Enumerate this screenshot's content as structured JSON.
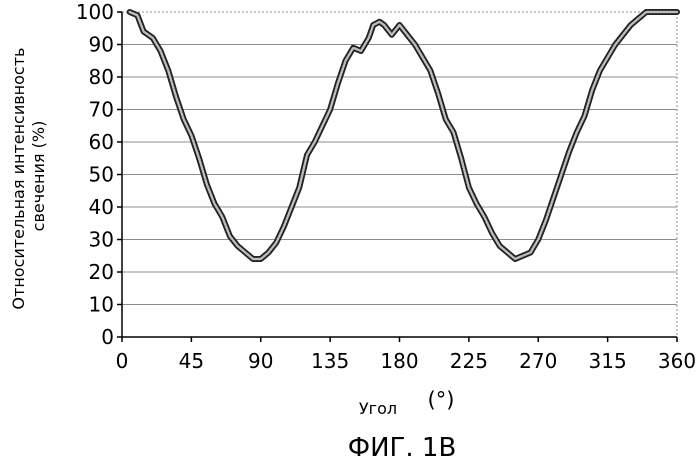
{
  "chart_data": {
    "type": "line",
    "ylabel_lines": [
      "Относительная интенсивность",
      "свечения (%)"
    ],
    "xlabel": "Угол",
    "xlabel_unit": "(°)",
    "figure_caption": "ФИГ. 1В",
    "xlim": [
      0,
      360
    ],
    "ylim": [
      0,
      100
    ],
    "xticks": [
      0,
      45,
      90,
      135,
      180,
      225,
      270,
      315,
      360
    ],
    "yticks": [
      0,
      10,
      20,
      30,
      40,
      50,
      60,
      70,
      80,
      90,
      100
    ],
    "grid": "horizontal",
    "series": [
      {
        "x": [
          5,
          10,
          14,
          20,
          25,
          30,
          35,
          40,
          45,
          50,
          55,
          60,
          65,
          70,
          75,
          80,
          85,
          90,
          95,
          100,
          105,
          110,
          115,
          120,
          125,
          130,
          135,
          140,
          145,
          150,
          155,
          160,
          163,
          167,
          170,
          175,
          180,
          185,
          190,
          195,
          200,
          205,
          210,
          215,
          220,
          225,
          230,
          235,
          240,
          245,
          250,
          255,
          260,
          265,
          270,
          275,
          280,
          285,
          290,
          295,
          300,
          305,
          310,
          315,
          320,
          325,
          330,
          335,
          340,
          345,
          350,
          355,
          360
        ],
        "y": [
          100,
          99,
          94,
          92,
          88,
          82,
          74,
          67,
          62,
          55,
          47,
          41,
          37,
          31,
          28,
          26,
          24,
          24,
          26,
          29,
          34,
          40,
          46,
          56,
          60,
          65,
          70,
          78,
          85,
          89,
          88,
          92,
          96,
          97,
          96,
          93,
          96,
          93,
          90,
          86,
          82,
          75,
          67,
          63,
          55,
          46,
          41,
          37,
          32,
          28,
          26,
          24,
          25,
          26,
          30,
          36,
          43,
          50,
          57,
          63,
          68,
          76,
          82,
          86,
          90,
          93,
          96,
          98,
          100,
          100,
          100,
          100,
          100
        ]
      }
    ]
  }
}
